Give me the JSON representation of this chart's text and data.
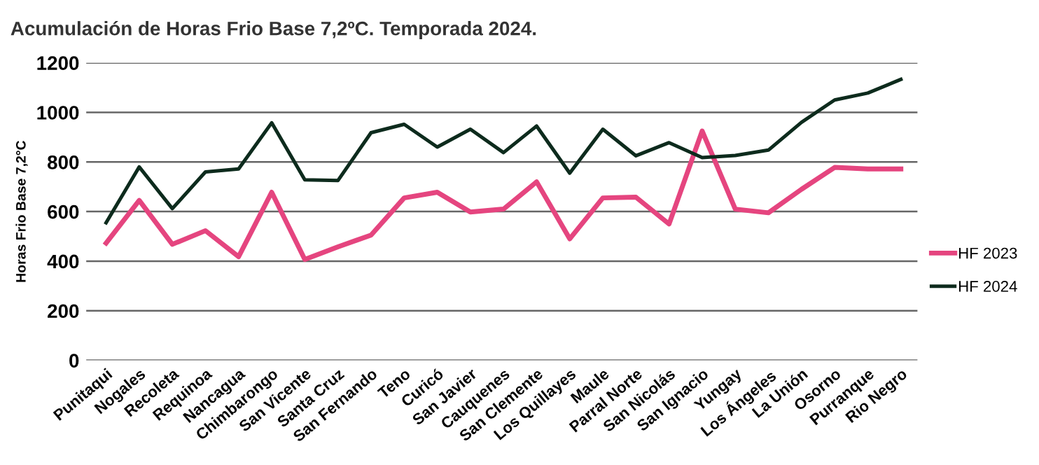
{
  "chart_data": {
    "type": "line",
    "title": "Acumulación de Horas Frio Base 7,2ºC. Temporada 2024.",
    "ylabel": "Horas Frio Base 7,2°C",
    "categories": [
      "Punitaqui",
      "Nogales",
      "Recoleta",
      "Requinoa",
      "Nancagua",
      "Chimbarongo",
      "San Vicente",
      "Santa Cruz",
      "San Fernando",
      "Teno",
      "Curicó",
      "San Javier",
      "Cauquenes",
      "San Clemente",
      "Los Quillayes",
      "Maule",
      "Parral Norte",
      "San Nicolás",
      "San Ignacio",
      "Yungay",
      "Los Ángeles",
      "La Unión",
      "Osorno",
      "Purranque",
      "Rio Negro"
    ],
    "series": [
      {
        "name": "HF 2023",
        "color": "#e5457f",
        "values": [
          473,
          645,
          468,
          523,
          418,
          678,
          407,
          458,
          505,
          655,
          678,
          598,
          610,
          720,
          490,
          655,
          658,
          550,
          925,
          610,
          595,
          690,
          778,
          772,
          772
        ]
      },
      {
        "name": "HF 2024",
        "color": "#0d2b1d",
        "values": [
          555,
          780,
          612,
          760,
          772,
          958,
          728,
          725,
          918,
          952,
          860,
          932,
          838,
          945,
          755,
          932,
          825,
          878,
          818,
          826,
          848,
          960,
          1050,
          1078,
          1133
        ]
      }
    ],
    "ylim": [
      0,
      1200
    ],
    "yticks": [
      0,
      200,
      400,
      600,
      800,
      1000,
      1200
    ],
    "grid": "y",
    "legend": "right",
    "marker": "none",
    "line_style": "solid"
  }
}
